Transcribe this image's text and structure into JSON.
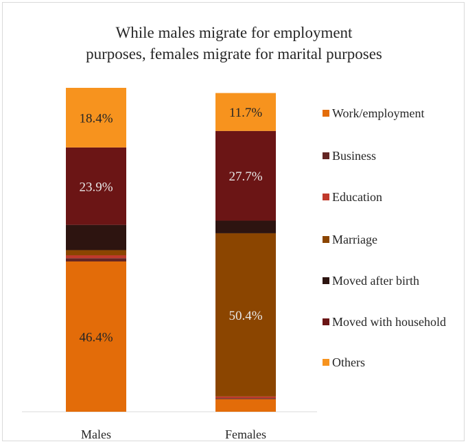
{
  "chart_data": {
    "type": "bar",
    "stacked": true,
    "title_lines": [
      "While males migrate for employment",
      "purposes, females migrate for marital purposes"
    ],
    "categories": [
      "Males",
      "Females"
    ],
    "ylim": [
      0,
      100
    ],
    "series": [
      {
        "name": "Work/employment",
        "color": "#e36c09",
        "values": [
          46.4,
          3.9
        ],
        "labels": [
          "46.4%",
          ""
        ]
      },
      {
        "name": "Business",
        "color": "#632523",
        "values": [
          1.0,
          0.3
        ],
        "labels": [
          "",
          ""
        ]
      },
      {
        "name": "Education",
        "color": "#c0392b",
        "values": [
          0.9,
          0.5
        ],
        "labels": [
          "",
          ""
        ]
      },
      {
        "name": "Marriage",
        "color": "#8b4500",
        "values": [
          1.6,
          50.4
        ],
        "labels": [
          "",
          "50.4%"
        ]
      },
      {
        "name": "Moved after birth",
        "color": "#2d1410",
        "values": [
          7.8,
          3.9
        ],
        "labels": [
          "",
          ""
        ]
      },
      {
        "name": "Moved with household",
        "color": "#6b1515",
        "values": [
          23.9,
          27.7
        ],
        "labels": [
          "23.9%",
          "27.7%"
        ]
      },
      {
        "name": "Others",
        "color": "#f7931e",
        "values": [
          18.4,
          11.7
        ],
        "labels": [
          "18.4%",
          "11.7%"
        ]
      }
    ],
    "legend_position": "right",
    "grid": false
  }
}
